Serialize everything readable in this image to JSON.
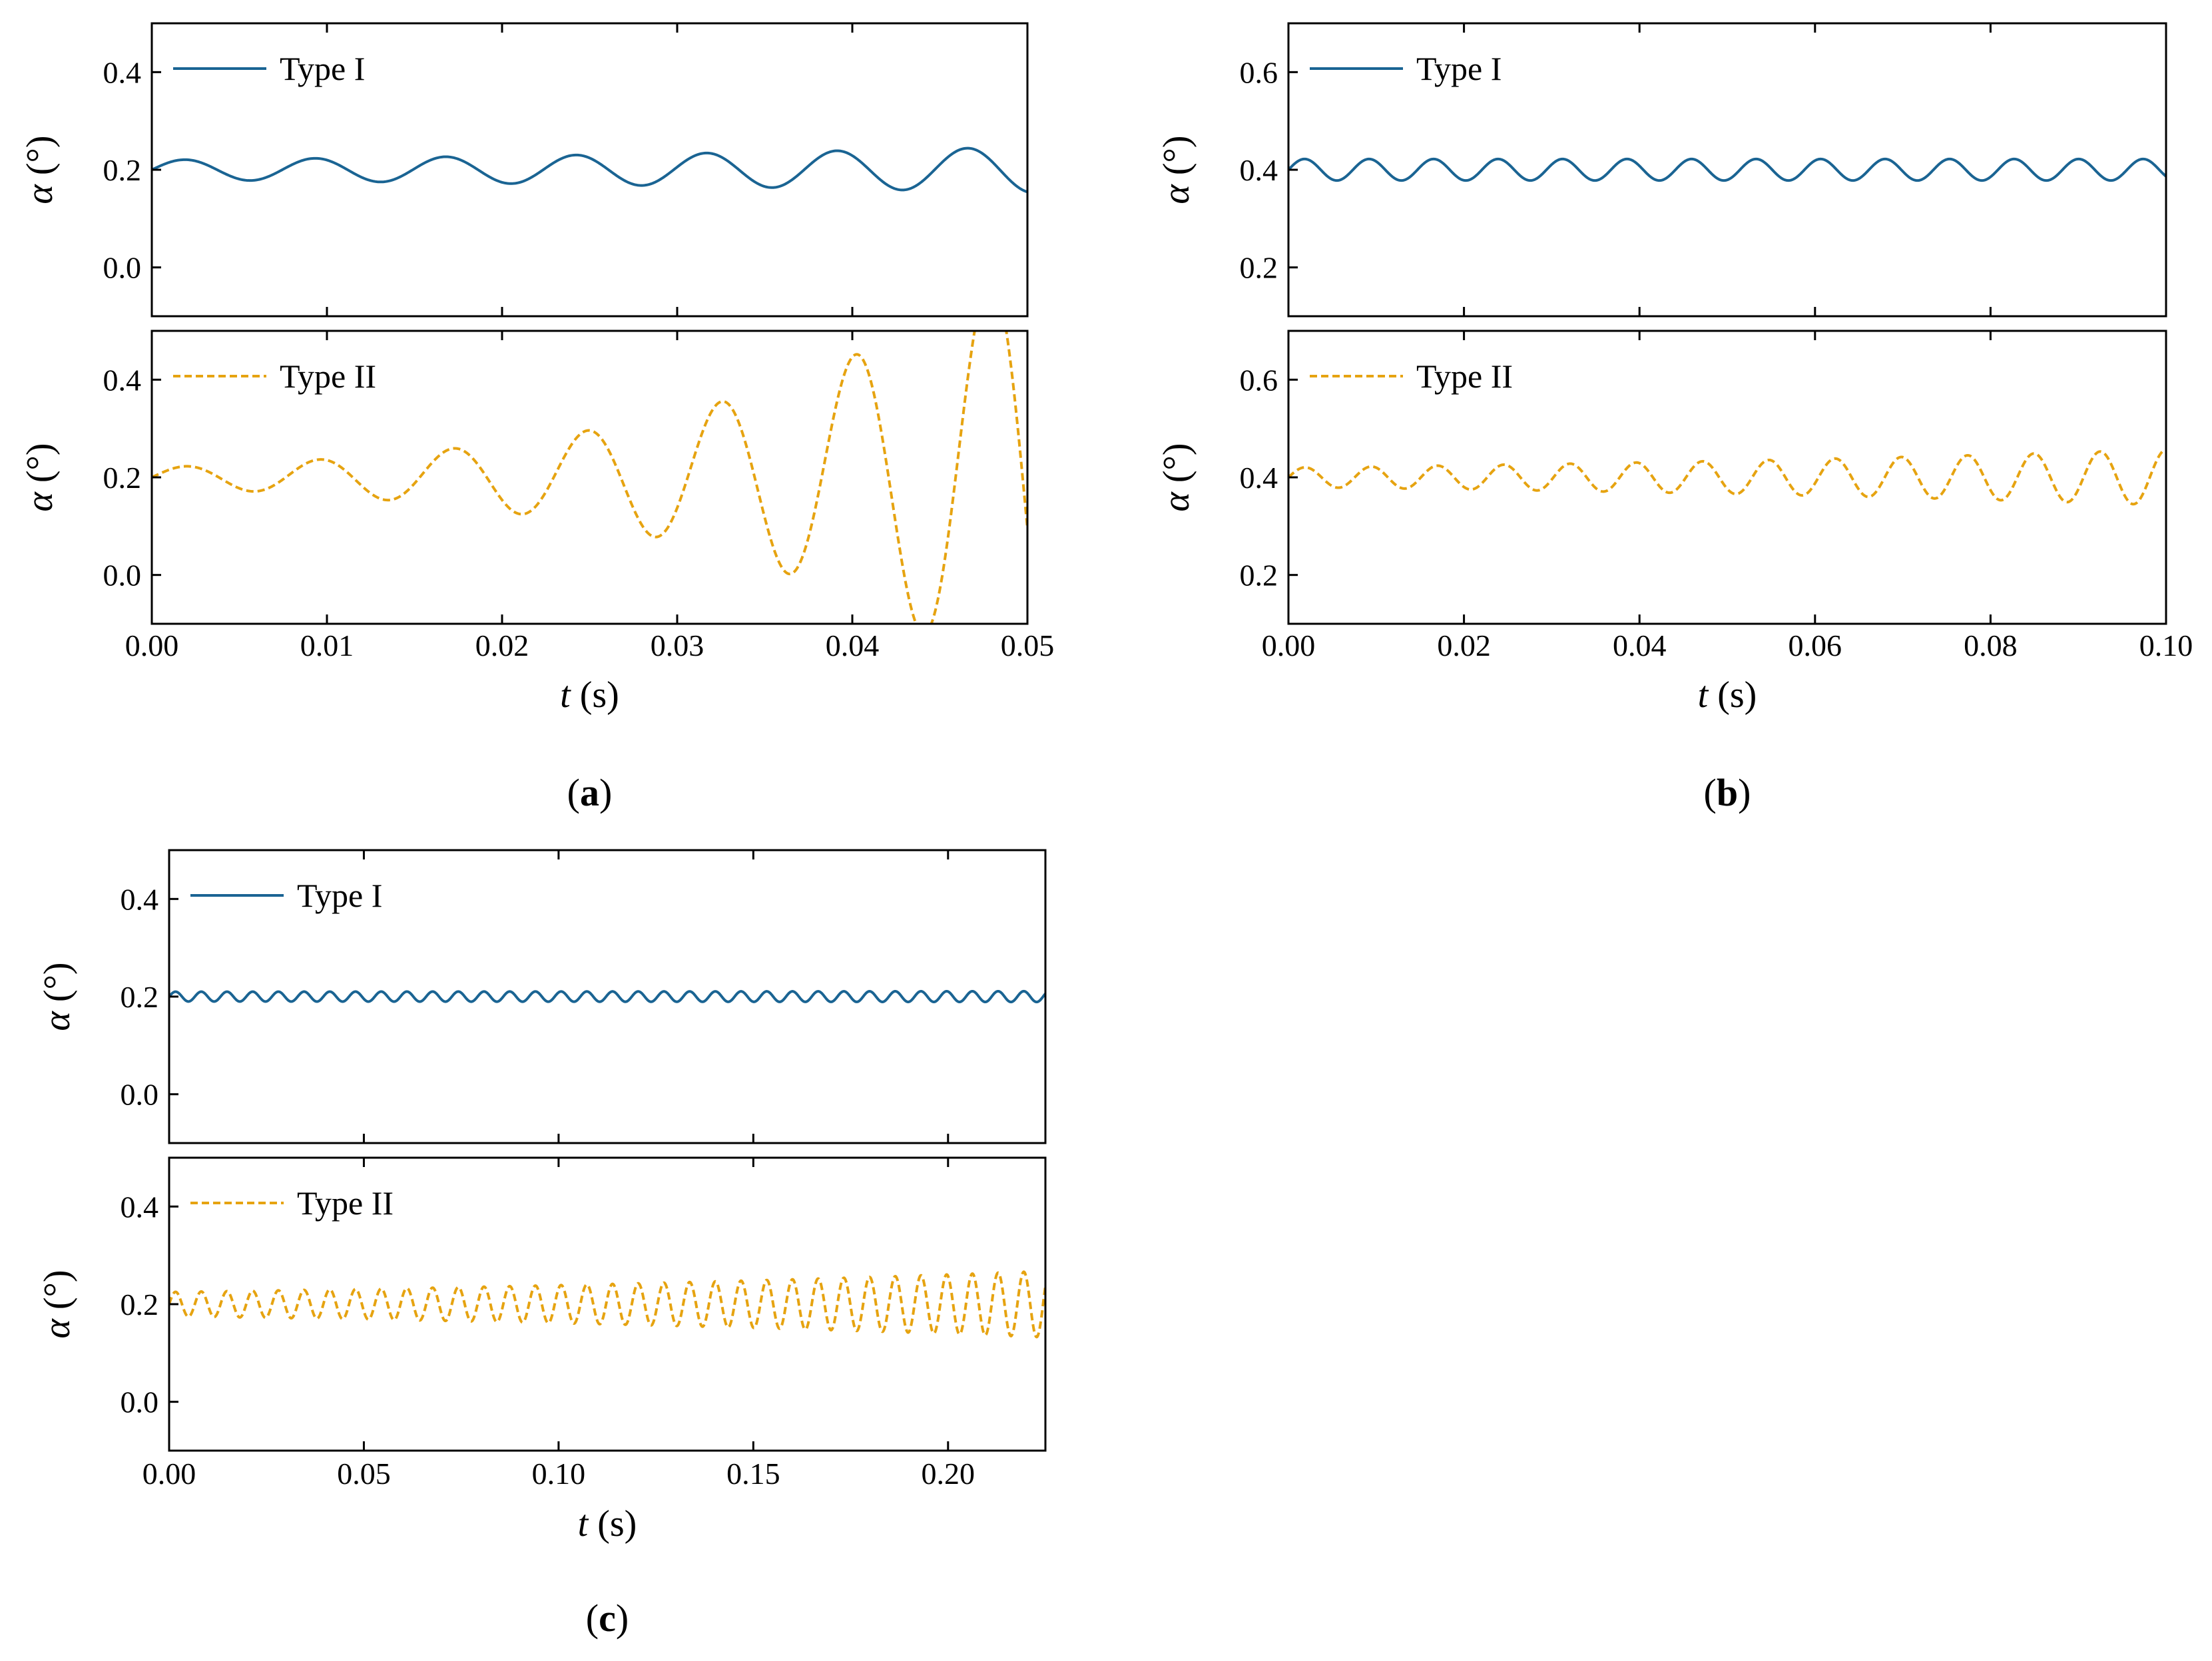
{
  "colors": {
    "type1": "#1a6493",
    "type2": "#e6a310",
    "axis": "#000000"
  },
  "chart_data": [
    {
      "id": "a",
      "panel_label": "a",
      "xlabel_var": "t",
      "xlabel_unit": " (s)",
      "xlim": [
        0,
        0.05
      ],
      "xticks": [
        0,
        0.01,
        0.02,
        0.03,
        0.04,
        0.05
      ],
      "xtick_labels": [
        "0.00",
        "0.01",
        "0.02",
        "0.03",
        "0.04",
        "0.05"
      ],
      "subplots": [
        {
          "type": "line",
          "legend": "Type I",
          "linestyle": "solid",
          "color_key": "type1",
          "ylabel_var": "α",
          "ylabel_unit": " (°)",
          "ylim": [
            -0.1,
            0.5
          ],
          "yticks": [
            0.0,
            0.2,
            0.4
          ],
          "ytick_labels": [
            "0.0",
            "0.2",
            "0.4"
          ],
          "signal": {
            "base": 0.2,
            "amp0": 0.02,
            "growth": 0.017,
            "period": 0.00745,
            "phase": 0.0,
            "points": 800
          }
        },
        {
          "type": "line",
          "legend": "Type II",
          "linestyle": "dashed",
          "color_key": "type2",
          "ylabel_var": "α",
          "ylabel_unit": " (°)",
          "ylim": [
            -0.1,
            0.5
          ],
          "yticks": [
            0.0,
            0.2,
            0.4
          ],
          "ytick_labels": [
            "0.0",
            "0.2",
            "0.4"
          ],
          "signal": {
            "base": 0.2,
            "amp0": 0.02,
            "growth": 0.063,
            "period": 0.00765,
            "phase": 0.0,
            "points": 800
          }
        }
      ]
    },
    {
      "id": "b",
      "panel_label": "b",
      "xlabel_var": "t",
      "xlabel_unit": " (s)",
      "xlim": [
        0,
        0.1
      ],
      "xticks": [
        0,
        0.02,
        0.04,
        0.06,
        0.08,
        0.1
      ],
      "xtick_labels": [
        "0.00",
        "0.02",
        "0.04",
        "0.06",
        "0.08",
        "0.10"
      ],
      "subplots": [
        {
          "type": "line",
          "legend": "Type I",
          "linestyle": "solid",
          "color_key": "type1",
          "ylabel_var": "α",
          "ylabel_unit": " (°)",
          "ylim": [
            0.1,
            0.7
          ],
          "yticks": [
            0.2,
            0.4,
            0.6
          ],
          "ytick_labels": [
            "0.2",
            "0.4",
            "0.6"
          ],
          "signal": {
            "base": 0.4,
            "amp0": 0.022,
            "growth": 0.0,
            "period": 0.00735,
            "phase": 0.0,
            "points": 1200
          }
        },
        {
          "type": "line",
          "legend": "Type II",
          "linestyle": "dashed",
          "color_key": "type2",
          "ylabel_var": "α",
          "ylabel_unit": " (°)",
          "ylim": [
            0.1,
            0.7
          ],
          "yticks": [
            0.2,
            0.4,
            0.6
          ],
          "ytick_labels": [
            "0.2",
            "0.4",
            "0.6"
          ],
          "signal": {
            "base": 0.4,
            "amp0": 0.02,
            "growth": 0.021,
            "period": 0.00755,
            "phase": 0.0,
            "points": 1400
          }
        }
      ]
    },
    {
      "id": "c",
      "panel_label": "c",
      "xlabel_var": "t",
      "xlabel_unit": " (s)",
      "xlim": [
        0,
        0.225
      ],
      "xticks": [
        0,
        0.05,
        0.1,
        0.15,
        0.2
      ],
      "xtick_labels": [
        "0.00",
        "0.05",
        "0.10",
        "0.15",
        "0.20"
      ],
      "subplots": [
        {
          "type": "line",
          "legend": "Type I",
          "linestyle": "solid",
          "color_key": "type1",
          "ylabel_var": "α",
          "ylabel_unit": " (°)",
          "ylim": [
            -0.1,
            0.5
          ],
          "yticks": [
            0.0,
            0.2,
            0.4
          ],
          "ytick_labels": [
            "0.0",
            "0.2",
            "0.4"
          ],
          "signal": {
            "base": 0.2,
            "amp0": 0.01,
            "growth": 0.002,
            "period": 0.0066,
            "phase": 0.0,
            "points": 2400
          }
        },
        {
          "type": "line",
          "legend": "Type II",
          "linestyle": "dashed",
          "color_key": "type2",
          "ylabel_var": "α",
          "ylabel_unit": " (°)",
          "ylim": [
            -0.1,
            0.5
          ],
          "yticks": [
            0.0,
            0.2,
            0.4
          ],
          "ytick_labels": [
            "0.0",
            "0.2",
            "0.4"
          ],
          "signal": {
            "base": 0.2,
            "amp0": 0.025,
            "growth": 0.02,
            "period": 0.0066,
            "phase": 0.0,
            "points": 2600
          }
        }
      ]
    }
  ]
}
